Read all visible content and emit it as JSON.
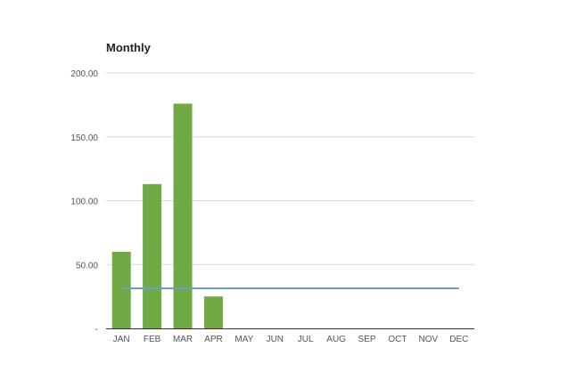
{
  "chart_data": {
    "type": "bar",
    "title": "Monthly",
    "xlabel": "",
    "ylabel": "",
    "categories": [
      "JAN",
      "FEB",
      "MAR",
      "APR",
      "MAY",
      "JUN",
      "JUL",
      "AUG",
      "SEP",
      "OCT",
      "NOV",
      "DEC"
    ],
    "series": [
      {
        "type": "bar",
        "values": [
          60,
          113,
          176,
          25,
          0,
          0,
          0,
          0,
          0,
          0,
          0,
          0
        ]
      },
      {
        "type": "line",
        "values": [
          31.4,
          31.4,
          31.4,
          31.4,
          31.4,
          31.4,
          31.4,
          31.4,
          31.4,
          31.4,
          31.4,
          31.4
        ]
      }
    ],
    "y_ticks": [
      "-",
      "50.00",
      "100.00",
      "150.00",
      "200.00"
    ],
    "ylim": [
      0,
      200
    ],
    "grid": true,
    "legend": "none",
    "colors": {
      "bar": "#6faa45",
      "line": "#6a9fcc",
      "grid": "#d9d9d9",
      "axis": "#333333",
      "tick_text": "#555555"
    }
  }
}
